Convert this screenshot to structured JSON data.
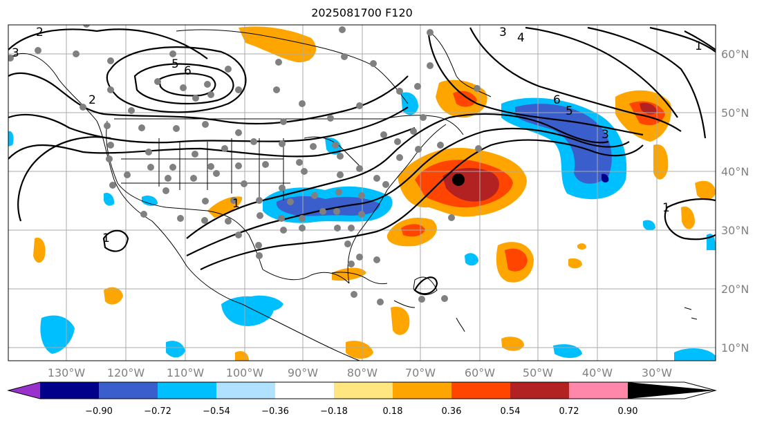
{
  "title": "2025081700 F120",
  "lon_labels": [
    "130°W",
    "120°W",
    "110°W",
    "100°W",
    "90°W",
    "80°W",
    "70°W",
    "60°W",
    "50°W",
    "40°W",
    "30°W"
  ],
  "lat_labels": [
    "60°N",
    "50°N",
    "40°N",
    "30°N",
    "20°N",
    "10°N"
  ],
  "colorbar": {
    "ticks": [
      "−0.90",
      "−0.72",
      "−0.54",
      "−0.36",
      "−0.18",
      "0.18",
      "0.36",
      "0.54",
      "0.72",
      "0.90"
    ],
    "colors": [
      "#9932cc",
      "#00008b",
      "#3a5fcd",
      "#00bfff",
      "#b0e2ff",
      "#ffffff",
      "#ffe680",
      "#ffa500",
      "#ff4500",
      "#b22222",
      "#ff88aa"
    ]
  },
  "contour_labels": [
    "2",
    "3",
    "5",
    "6",
    "2",
    "1",
    "1",
    "3",
    "4",
    "1",
    "6",
    "5",
    "3",
    "1"
  ],
  "storm_marker": "black-dot"
}
